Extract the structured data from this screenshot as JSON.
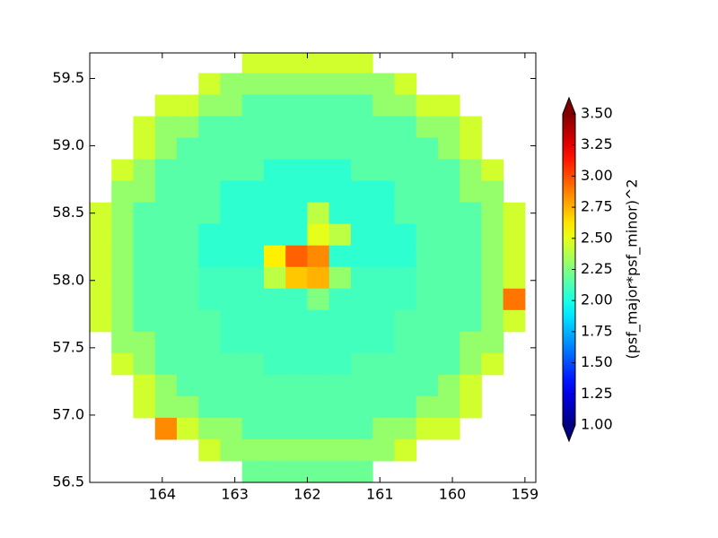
{
  "chart_data": {
    "type": "heatmap",
    "x": [
      164.85,
      164.55,
      164.25,
      163.95,
      163.65,
      163.35,
      163.05,
      162.75,
      162.45,
      162.15,
      161.85,
      161.55,
      161.25,
      160.95,
      160.65,
      160.35,
      160.05,
      159.75,
      159.45,
      159.15
    ],
    "y": [
      59.62,
      59.46,
      59.3,
      59.14,
      58.98,
      58.82,
      58.66,
      58.5,
      58.34,
      58.18,
      58.02,
      57.86,
      57.7,
      57.54,
      57.38,
      57.22,
      57.06,
      56.9,
      56.74,
      56.58
    ],
    "z": [
      [
        null,
        null,
        null,
        null,
        null,
        null,
        null,
        2.45,
        2.45,
        2.45,
        2.45,
        2.45,
        2.45,
        null,
        null,
        null,
        null,
        null,
        null,
        null
      ],
      [
        null,
        null,
        null,
        null,
        null,
        2.45,
        2.3,
        2.3,
        2.3,
        2.3,
        2.3,
        2.3,
        2.3,
        2.3,
        2.45,
        null,
        null,
        null,
        null,
        null
      ],
      [
        null,
        null,
        null,
        2.45,
        2.45,
        2.3,
        2.3,
        2.15,
        2.15,
        2.15,
        2.15,
        2.15,
        2.15,
        2.3,
        2.3,
        2.45,
        2.45,
        null,
        null,
        null
      ],
      [
        null,
        null,
        2.45,
        2.3,
        2.3,
        2.15,
        2.15,
        2.15,
        2.15,
        2.15,
        2.15,
        2.15,
        2.15,
        2.15,
        2.15,
        2.3,
        2.3,
        2.45,
        null,
        null
      ],
      [
        null,
        null,
        2.45,
        2.3,
        2.15,
        2.15,
        2.15,
        2.15,
        2.15,
        2.15,
        2.15,
        2.15,
        2.15,
        2.15,
        2.15,
        2.15,
        2.3,
        2.45,
        null,
        null
      ],
      [
        null,
        2.45,
        2.3,
        2.15,
        2.15,
        2.15,
        2.15,
        2.15,
        2.05,
        2.05,
        2.05,
        2.05,
        2.15,
        2.15,
        2.15,
        2.15,
        2.15,
        2.3,
        2.45,
        null
      ],
      [
        null,
        2.3,
        2.3,
        2.15,
        2.15,
        2.15,
        2.05,
        2.05,
        2.05,
        2.05,
        2.05,
        2.05,
        2.05,
        2.05,
        2.15,
        2.15,
        2.15,
        2.3,
        2.3,
        null
      ],
      [
        2.45,
        2.3,
        2.15,
        2.15,
        2.15,
        2.15,
        2.05,
        2.05,
        2.05,
        2.05,
        2.4,
        2.05,
        2.05,
        2.05,
        2.15,
        2.15,
        2.15,
        2.15,
        2.3,
        2.45
      ],
      [
        2.45,
        2.3,
        2.15,
        2.15,
        2.15,
        2.05,
        2.05,
        2.05,
        2.05,
        2.05,
        2.5,
        2.4,
        2.05,
        2.05,
        2.05,
        2.15,
        2.15,
        2.15,
        2.3,
        2.45
      ],
      [
        2.45,
        2.3,
        2.15,
        2.15,
        2.15,
        2.05,
        2.05,
        2.05,
        2.6,
        2.95,
        2.85,
        2.05,
        2.05,
        2.05,
        2.05,
        2.15,
        2.15,
        2.15,
        2.3,
        2.45
      ],
      [
        2.45,
        2.3,
        2.15,
        2.15,
        2.15,
        2.1,
        2.1,
        2.1,
        2.4,
        2.7,
        2.75,
        2.3,
        2.1,
        2.1,
        2.1,
        2.15,
        2.15,
        2.15,
        2.3,
        2.45
      ],
      [
        2.45,
        2.3,
        2.15,
        2.15,
        2.15,
        2.1,
        2.1,
        2.1,
        2.1,
        2.1,
        2.25,
        2.1,
        2.1,
        2.1,
        2.1,
        2.15,
        2.15,
        2.15,
        2.3,
        2.9
      ],
      [
        2.45,
        2.3,
        2.15,
        2.15,
        2.15,
        2.15,
        2.1,
        2.1,
        2.1,
        2.1,
        2.1,
        2.1,
        2.1,
        2.1,
        2.15,
        2.15,
        2.15,
        2.15,
        2.3,
        2.45
      ],
      [
        null,
        2.3,
        2.3,
        2.15,
        2.15,
        2.15,
        2.1,
        2.1,
        2.1,
        2.1,
        2.1,
        2.1,
        2.1,
        2.1,
        2.15,
        2.15,
        2.15,
        2.3,
        2.3,
        null
      ],
      [
        null,
        2.45,
        2.3,
        2.15,
        2.15,
        2.15,
        2.15,
        2.15,
        2.1,
        2.1,
        2.1,
        2.1,
        2.15,
        2.15,
        2.15,
        2.15,
        2.15,
        2.3,
        2.45,
        null
      ],
      [
        null,
        null,
        2.45,
        2.3,
        2.15,
        2.15,
        2.15,
        2.15,
        2.15,
        2.15,
        2.15,
        2.15,
        2.15,
        2.15,
        2.15,
        2.15,
        2.3,
        2.45,
        null,
        null
      ],
      [
        null,
        null,
        2.45,
        2.3,
        2.3,
        2.15,
        2.15,
        2.15,
        2.15,
        2.15,
        2.15,
        2.15,
        2.15,
        2.15,
        2.15,
        2.3,
        2.3,
        2.45,
        null,
        null
      ],
      [
        null,
        null,
        null,
        2.85,
        2.45,
        2.3,
        2.3,
        2.15,
        2.15,
        2.15,
        2.15,
        2.15,
        2.15,
        2.3,
        2.3,
        2.45,
        2.45,
        null,
        null,
        null
      ],
      [
        null,
        null,
        null,
        null,
        null,
        2.45,
        2.3,
        2.3,
        2.3,
        2.3,
        2.3,
        2.3,
        2.3,
        2.3,
        2.45,
        null,
        null,
        null,
        null,
        null
      ],
      [
        null,
        null,
        null,
        null,
        null,
        null,
        null,
        2.2,
        2.2,
        2.2,
        2.2,
        2.2,
        2.2,
        null,
        null,
        null,
        null,
        null,
        null,
        null
      ]
    ],
    "xlim": [
      165,
      158.85
    ],
    "ylim": [
      56.5,
      59.69
    ],
    "xticks": [
      164,
      163,
      162,
      161,
      160,
      159
    ],
    "yticks": [
      56.5,
      {
        "value": 57,
        "label": "57.0"
      },
      57.5,
      {
        "value": 58,
        "label": "58.0"
      },
      58.5,
      {
        "value": 59,
        "label": "59.0"
      },
      59.5
    ],
    "colorbar": {
      "label": "(psf_major*psf_minor)^2",
      "cmap": "jet",
      "clim": [
        1,
        3.5
      ],
      "extend": "both",
      "ticks": [
        {
          "value": 1,
          "label": "1.00"
        },
        1.25,
        {
          "value": 1.5,
          "label": "1.50"
        },
        1.75,
        {
          "value": 2,
          "label": "2.00"
        },
        2.25,
        {
          "value": 2.5,
          "label": "2.50"
        },
        2.75,
        {
          "value": 3,
          "label": "3.00"
        },
        3.25,
        {
          "value": 3.5,
          "label": "3.50"
        }
      ]
    }
  }
}
